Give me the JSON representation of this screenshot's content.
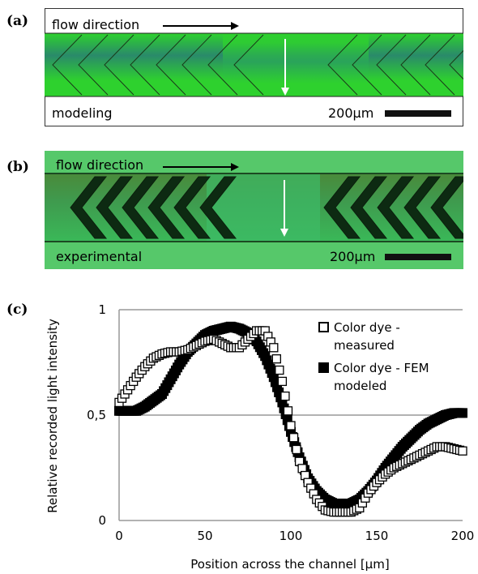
{
  "panels": {
    "a": {
      "label": "(a)",
      "flow_text": "flow direction",
      "mode_text": "modeling",
      "scale_text": "200μm"
    },
    "b": {
      "label": "(b)",
      "flow_text": "flow direction",
      "mode_text": "experimental",
      "scale_text": "200μm"
    },
    "c": {
      "label": "(c)"
    }
  },
  "colors": {
    "model_green": "#2ed12e",
    "model_band": "#2a8a6a",
    "exp_green": "#3fb85a",
    "exp_dark": "#0d2a12"
  },
  "chart_data": {
    "type": "scatter",
    "xlabel": "Position across the channel [μm]",
    "ylabel": "Relative recorded light intensity",
    "xlim": [
      0,
      200
    ],
    "ylim": [
      0,
      1
    ],
    "xticks": [
      "0",
      "50",
      "100",
      "150",
      "200"
    ],
    "yticks": [
      "0",
      "0,5",
      "1"
    ],
    "grid": "horizontal",
    "legend_position": "top-right",
    "legend": [
      {
        "label_line1": "Color dye -",
        "label_line2": "measured"
      },
      {
        "label_line1": "Color dye - FEM",
        "label_line2": "modeled"
      }
    ],
    "series": [
      {
        "name": "Color dye - measured",
        "marker": "open-square",
        "x": [
          0,
          5,
          10,
          15,
          20,
          25,
          30,
          35,
          40,
          45,
          50,
          55,
          60,
          65,
          70,
          75,
          80,
          85,
          90,
          95,
          100,
          105,
          110,
          115,
          120,
          125,
          130,
          135,
          140,
          145,
          150,
          155,
          160,
          165,
          170,
          175,
          180,
          185,
          190,
          195,
          200
        ],
        "y": [
          0.56,
          0.62,
          0.68,
          0.73,
          0.77,
          0.79,
          0.8,
          0.8,
          0.81,
          0.83,
          0.85,
          0.86,
          0.84,
          0.82,
          0.82,
          0.86,
          0.9,
          0.9,
          0.82,
          0.66,
          0.45,
          0.28,
          0.18,
          0.1,
          0.05,
          0.04,
          0.04,
          0.04,
          0.06,
          0.13,
          0.18,
          0.22,
          0.25,
          0.27,
          0.29,
          0.31,
          0.33,
          0.35,
          0.35,
          0.34,
          0.33
        ]
      },
      {
        "name": "Color dye - FEM modeled",
        "marker": "filled-square",
        "x": [
          0,
          5,
          10,
          15,
          20,
          25,
          30,
          35,
          40,
          45,
          50,
          55,
          60,
          65,
          70,
          75,
          80,
          85,
          90,
          95,
          100,
          105,
          110,
          115,
          120,
          125,
          130,
          135,
          140,
          145,
          150,
          155,
          160,
          165,
          170,
          175,
          180,
          185,
          190,
          195,
          200
        ],
        "y": [
          0.52,
          0.52,
          0.52,
          0.54,
          0.57,
          0.6,
          0.67,
          0.74,
          0.8,
          0.84,
          0.88,
          0.9,
          0.91,
          0.92,
          0.91,
          0.89,
          0.85,
          0.78,
          0.68,
          0.56,
          0.42,
          0.3,
          0.2,
          0.14,
          0.1,
          0.08,
          0.08,
          0.08,
          0.1,
          0.14,
          0.19,
          0.25,
          0.3,
          0.35,
          0.39,
          0.43,
          0.46,
          0.48,
          0.5,
          0.51,
          0.51
        ]
      }
    ]
  }
}
